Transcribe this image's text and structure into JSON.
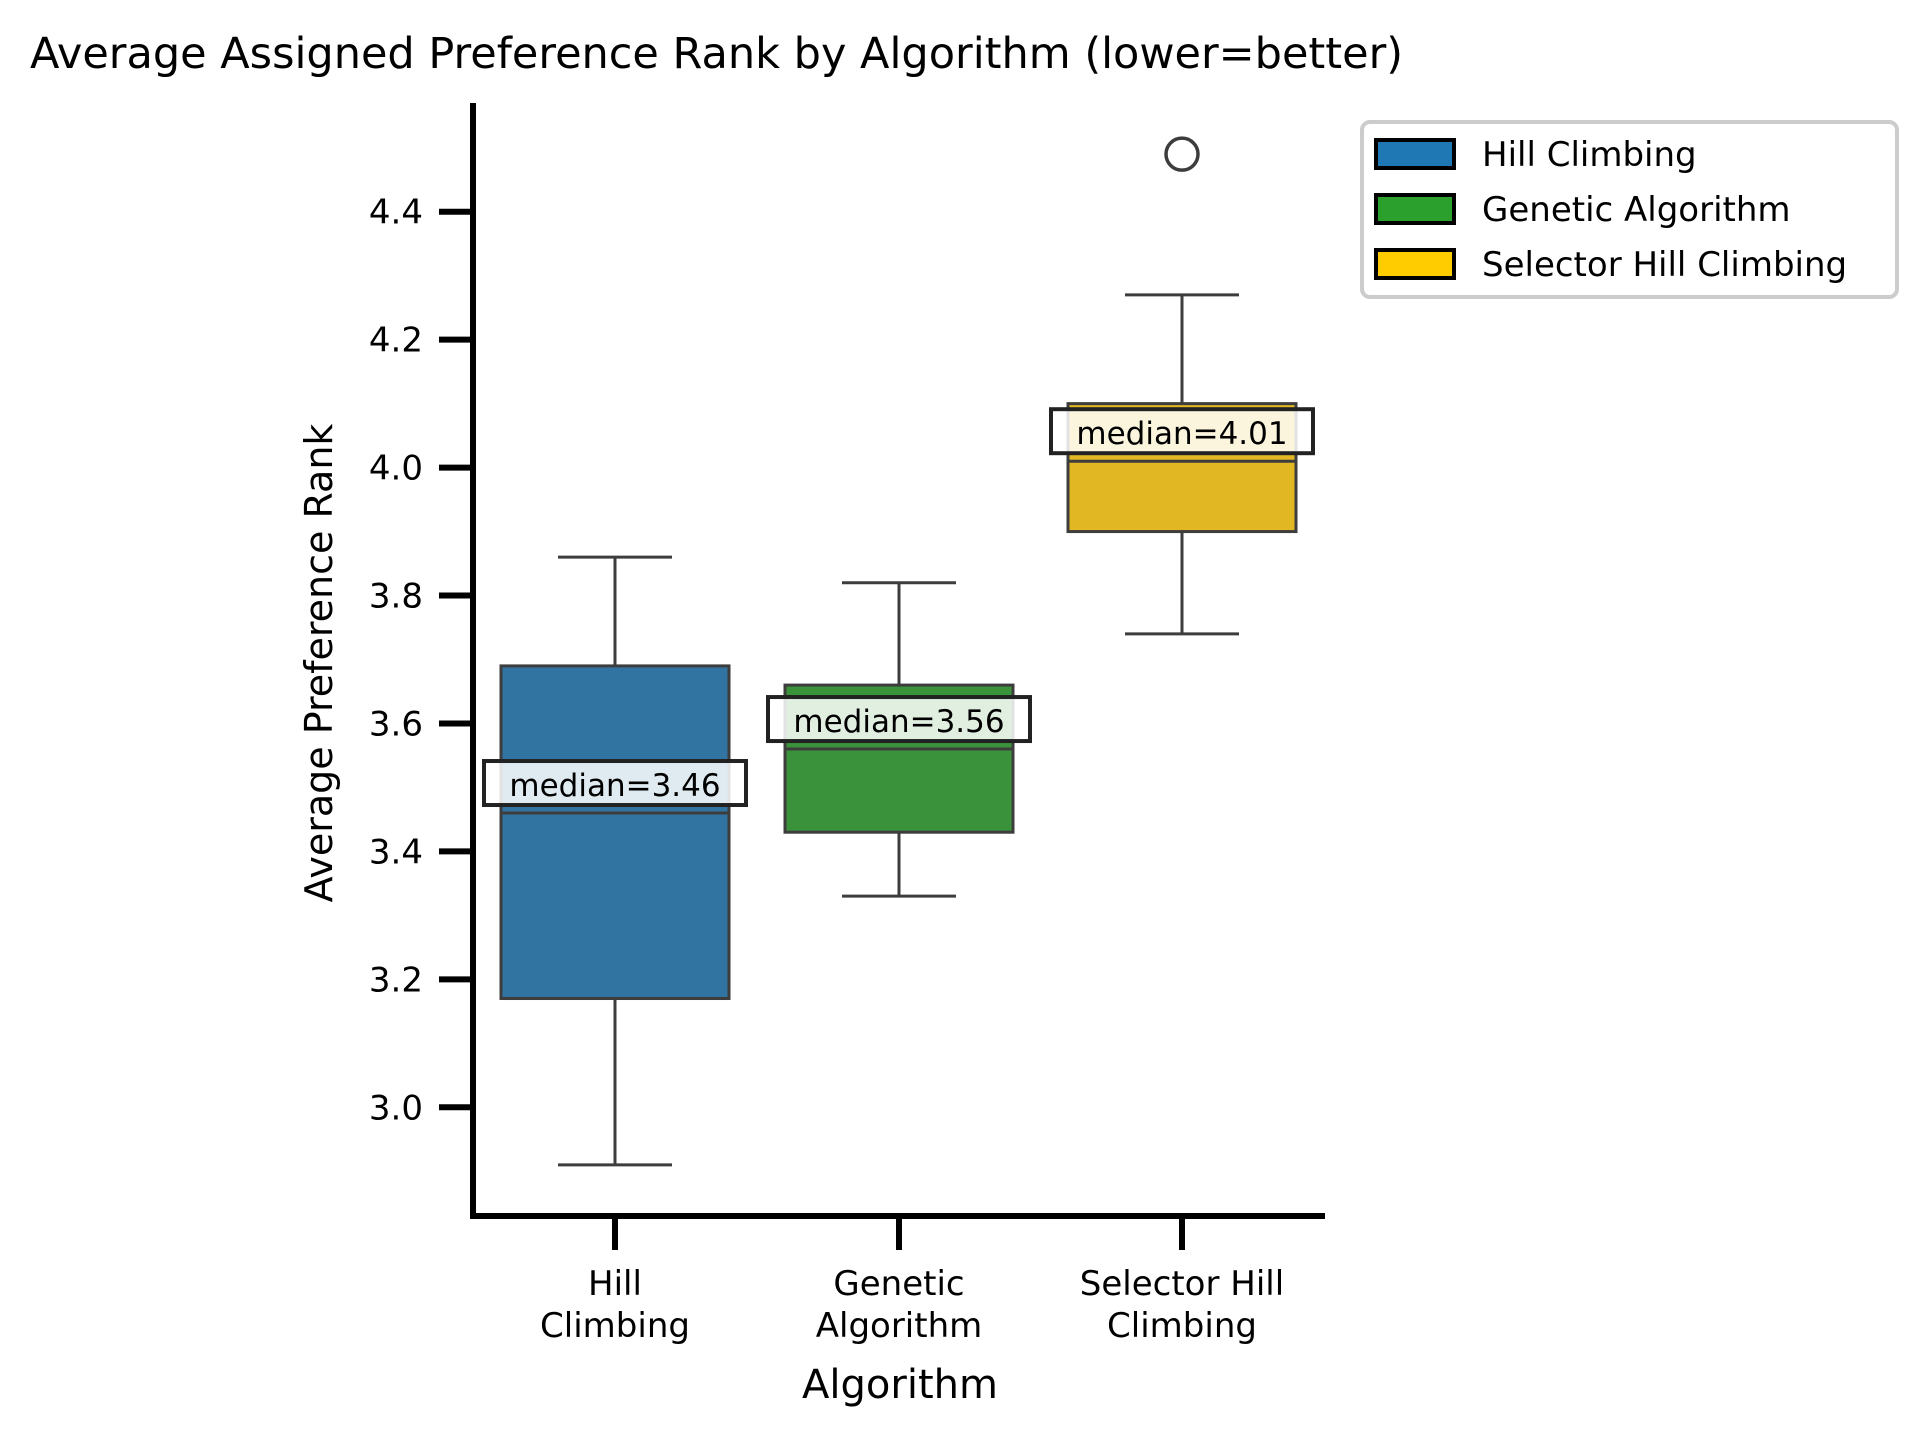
{
  "chart_data": {
    "type": "box",
    "title": "Average Assigned Preference Rank by Algorithm (lower=better)",
    "xlabel": "Algorithm",
    "ylabel": "Average Preference Rank",
    "ylim": [
      2.83,
      4.57
    ],
    "yticks": [
      "3.0",
      "3.2",
      "3.4",
      "3.6",
      "3.8",
      "4.0",
      "4.2",
      "4.4"
    ],
    "grid": false,
    "legend_position": "upper right, outside the plot area",
    "categories": [
      {
        "tick_lines": [
          "Hill",
          "Climbing"
        ],
        "legend": "Hill Climbing",
        "color": "#3274a1",
        "legend_color": "#1f77b4",
        "whisker_low": 2.91,
        "q1": 3.17,
        "median": 3.46,
        "q3": 3.69,
        "whisker_high": 3.86,
        "outliers": [],
        "median_label": "median=3.46"
      },
      {
        "tick_lines": [
          "Genetic",
          "Algorithm"
        ],
        "legend": "Genetic Algorithm",
        "color": "#3a923a",
        "legend_color": "#2ca02c",
        "whisker_low": 3.33,
        "q1": 3.43,
        "median": 3.56,
        "q3": 3.66,
        "whisker_high": 3.82,
        "outliers": [],
        "median_label": "median=3.56"
      },
      {
        "tick_lines": [
          "Selector Hill",
          "Climbing"
        ],
        "legend": "Selector Hill Climbing",
        "color": "#e1b824",
        "legend_color": "#ffcc00",
        "whisker_low": 3.74,
        "q1": 3.9,
        "median": 4.01,
        "q3": 4.1,
        "whisker_high": 4.27,
        "outliers": [
          4.49
        ],
        "median_label": "median=4.01"
      }
    ]
  }
}
